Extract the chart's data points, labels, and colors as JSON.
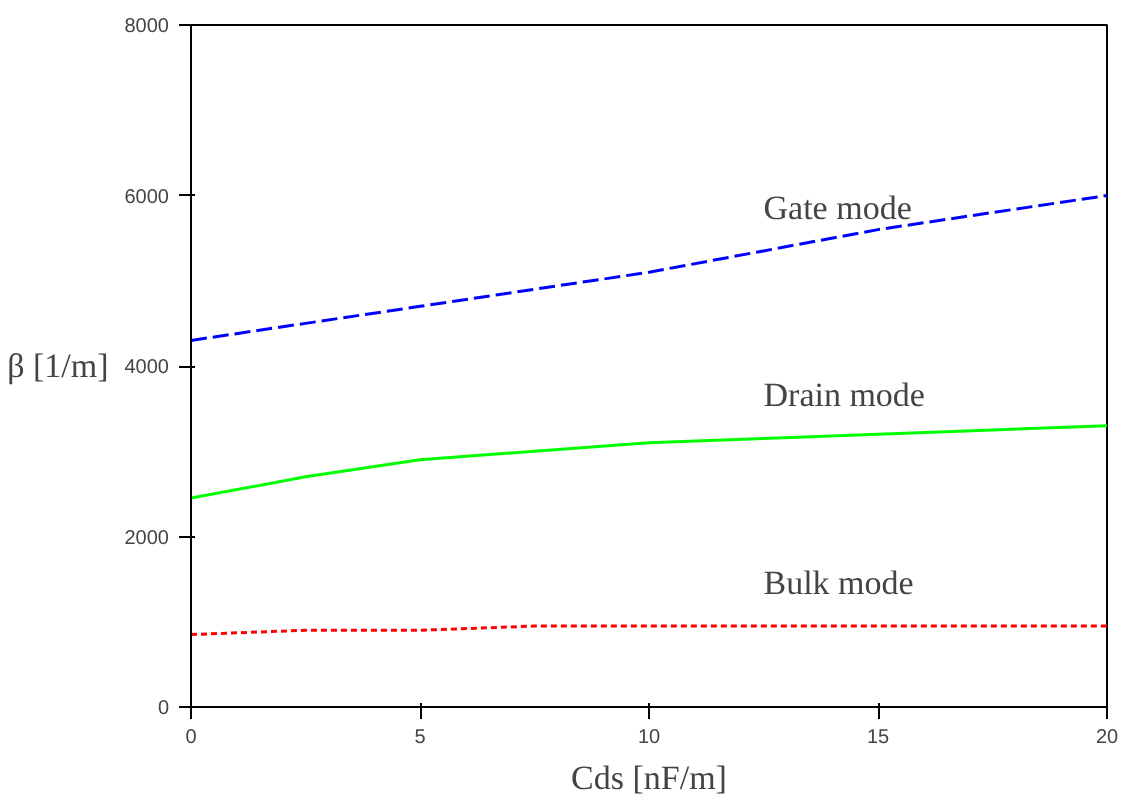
{
  "chart_data": {
    "type": "line",
    "xlabel": "Cds [nF/m]",
    "ylabel": "β [1/m]",
    "x": [
      0,
      2.5,
      5,
      7.5,
      10,
      12.5,
      15,
      17.5,
      20
    ],
    "series": [
      {
        "name": "Gate mode",
        "color": "#0000ff",
        "line_style": "dashed",
        "values": [
          4300,
          4500,
          4700,
          4900,
          5100,
          5350,
          5600,
          5800,
          6000
        ]
      },
      {
        "name": "Drain mode",
        "color": "#00ff00",
        "line_style": "solid",
        "values": [
          2450,
          2700,
          2900,
          3000,
          3100,
          3150,
          3200,
          3250,
          3300
        ]
      },
      {
        "name": "Bulk mode",
        "color": "#ff0000",
        "line_style": "dotted",
        "values": [
          850,
          900,
          900,
          950,
          950,
          950,
          950,
          950,
          950
        ]
      }
    ],
    "xlim": [
      0,
      20
    ],
    "ylim": [
      0,
      8000
    ],
    "xticks": [
      0,
      5,
      10,
      15,
      20
    ],
    "yticks": [
      0,
      2000,
      4000,
      6000,
      8000
    ]
  }
}
